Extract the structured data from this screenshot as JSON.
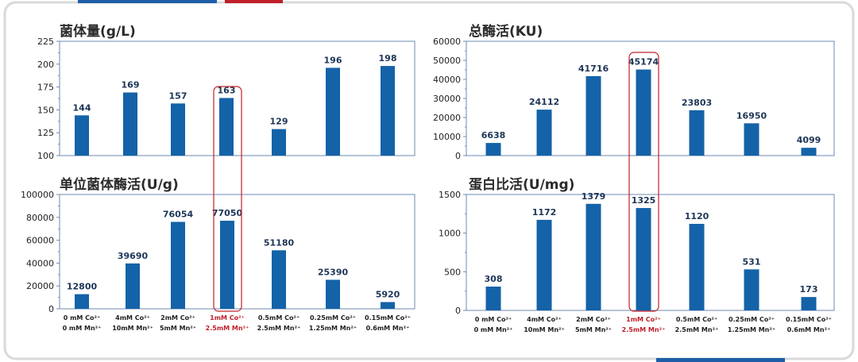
{
  "colors": {
    "bar": "#1462a8",
    "highlight": "#c0202a",
    "accent_blue": "#1e5ea8"
  },
  "categories": [
    {
      "line1": "0 mM Co²⁺",
      "line2": "0 mM Mn²⁺"
    },
    {
      "line1": "4mM Co²⁺",
      "line2": "10mM Mn²⁺"
    },
    {
      "line1": "2mM Co²⁺",
      "line2": "5mM Mn²⁺"
    },
    {
      "line1": "1mM Co²⁺",
      "line2": "2.5mM Mn²⁺"
    },
    {
      "line1": "0.5mM Co²⁺",
      "line2": "2.5mM Mn²⁺"
    },
    {
      "line1": "0.25mM Co²⁺",
      "line2": "1.25mM Mn²⁺"
    },
    {
      "line1": "0.15mM Co²⁺",
      "line2": "0.6mM Mn²⁺"
    }
  ],
  "highlight_index": 3,
  "chart_data": [
    {
      "id": "biomass",
      "type": "bar",
      "title": "菌体量(g/L)",
      "values": [
        144,
        169,
        157,
        163,
        129,
        196,
        198
      ],
      "ylim": [
        100,
        225
      ],
      "yticks": [
        100,
        125,
        150,
        175,
        200,
        225
      ],
      "show_categories": false
    },
    {
      "id": "total-activity",
      "type": "bar",
      "title": "总酶活(KU)",
      "values": [
        6638,
        24112,
        41716,
        45174,
        23803,
        16950,
        4099
      ],
      "ylim": [
        0,
        60000
      ],
      "yticks": [
        0,
        10000,
        20000,
        30000,
        40000,
        50000,
        60000
      ],
      "show_categories": false
    },
    {
      "id": "unit-activity",
      "type": "bar",
      "title": "单位菌体酶活(U/g)",
      "values": [
        12800,
        39690,
        76054,
        77050,
        51180,
        25390,
        5920
      ],
      "ylim": [
        0,
        100000
      ],
      "yticks": [
        0,
        20000,
        40000,
        60000,
        80000,
        100000
      ],
      "show_categories": true
    },
    {
      "id": "specific-activity",
      "type": "bar",
      "title": "蛋白比活(U/mg)",
      "values": [
        308,
        1172,
        1379,
        1325,
        1120,
        531,
        173
      ],
      "ylim": [
        0,
        1500
      ],
      "yticks": [
        0,
        500,
        1000,
        1500
      ],
      "show_categories": true
    }
  ]
}
